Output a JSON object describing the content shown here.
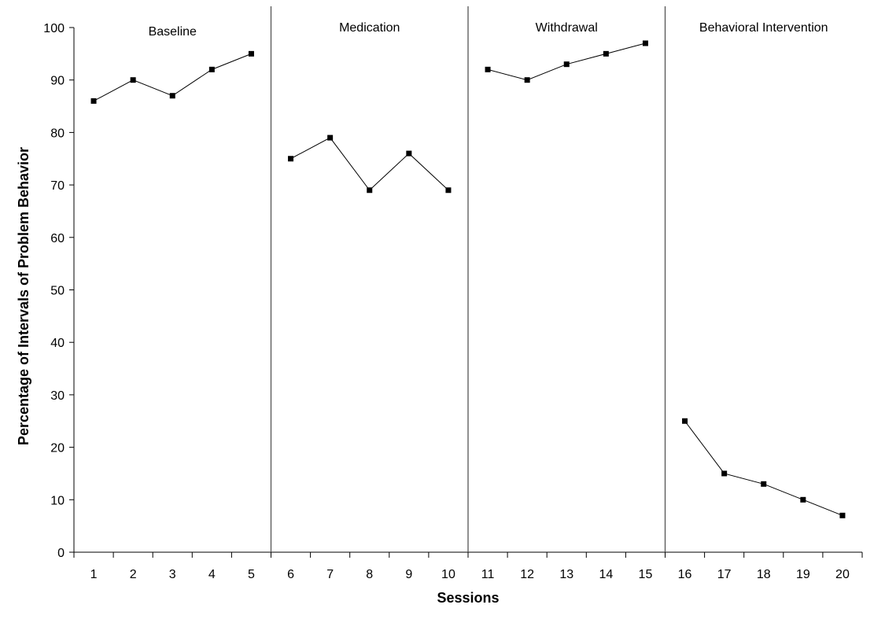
{
  "chart_data": {
    "type": "line",
    "xlabel": "Sessions",
    "ylabel": "Percentage of Intervals of Problem Behavior",
    "ylim": [
      0,
      100
    ],
    "yticks": [
      0,
      10,
      20,
      30,
      40,
      50,
      60,
      70,
      80,
      90,
      100
    ],
    "categories": [
      "1",
      "2",
      "3",
      "4",
      "5",
      "6",
      "7",
      "8",
      "9",
      "10",
      "11",
      "12",
      "13",
      "14",
      "15",
      "16",
      "17",
      "18",
      "19",
      "20"
    ],
    "phases": [
      {
        "name": "Baseline",
        "sessions": [
          1,
          2,
          3,
          4,
          5
        ],
        "values": [
          86,
          90,
          87,
          92,
          95
        ]
      },
      {
        "name": "Medication",
        "sessions": [
          6,
          7,
          8,
          9,
          10
        ],
        "values": [
          75,
          79,
          69,
          76,
          69
        ]
      },
      {
        "name": "Withdrawal",
        "sessions": [
          11,
          12,
          13,
          14,
          15
        ],
        "values": [
          92,
          90,
          93,
          95,
          97
        ]
      },
      {
        "name": "Behavioral Intervention",
        "sessions": [
          16,
          17,
          18,
          19,
          20
        ],
        "values": [
          25,
          15,
          13,
          10,
          7
        ]
      }
    ],
    "phase_change_lines_after_sessions": [
      5,
      10,
      15
    ],
    "grid": false,
    "colors": {
      "line": "#000000",
      "marker": "#000000",
      "divider": "#555555"
    }
  }
}
